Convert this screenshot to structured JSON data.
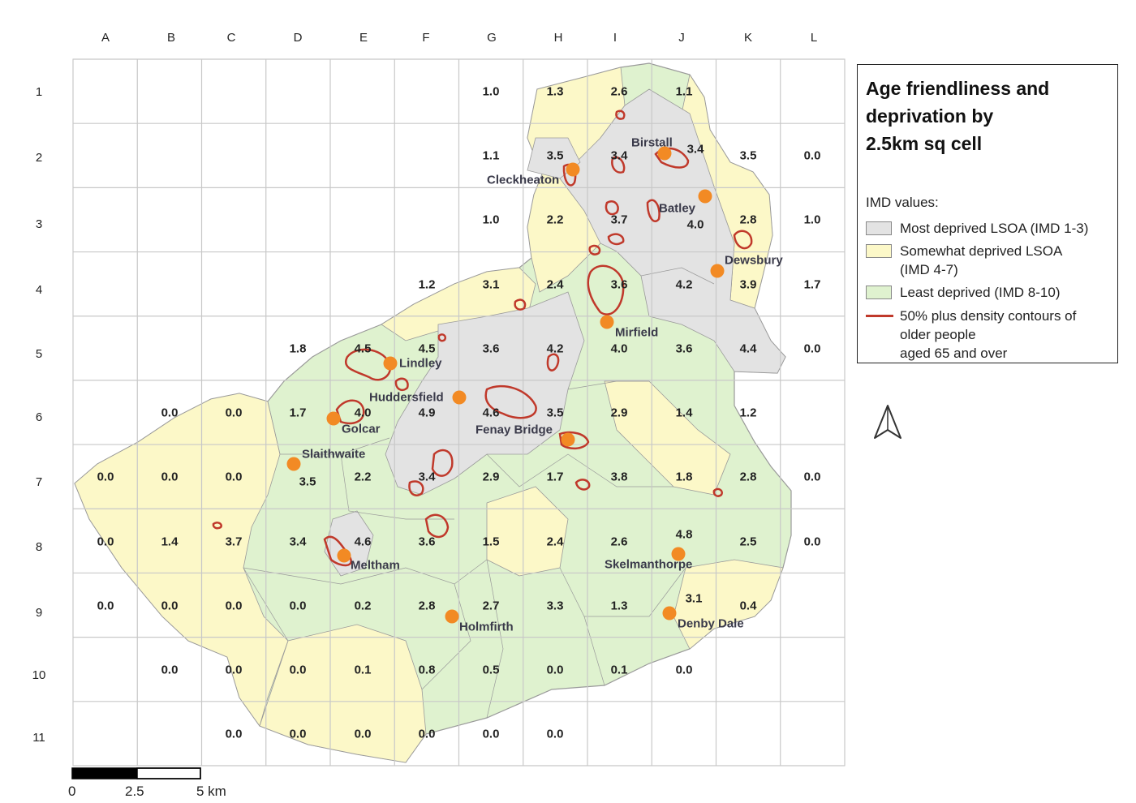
{
  "legend": {
    "title_lines": [
      "Age friendliness and",
      "deprivation by",
      "2.5km sq cell"
    ],
    "subtitle": "IMD values:",
    "items": [
      {
        "label": "Most deprived LSOA (IMD 1-3)",
        "color": "#e3e3e3"
      },
      {
        "label_lines": [
          "Somewhat deprived LSOA",
          "(IMD 4-7)"
        ],
        "color": "#fcf8c8"
      },
      {
        "label": "Least deprived (IMD 8-10)",
        "color": "#dff2cf"
      },
      {
        "label_lines": [
          "50% plus density contours of",
          "older people",
          "aged 65 and over"
        ],
        "color": "#c0392b"
      }
    ]
  },
  "grid": {
    "columns": [
      "A",
      "B",
      "C",
      "D",
      "E",
      "F",
      "G",
      "H",
      "I",
      "J",
      "K",
      "L"
    ],
    "rows": [
      "1",
      "2",
      "3",
      "4",
      "5",
      "6",
      "7",
      "8",
      "9",
      "10",
      "11"
    ]
  },
  "cell_values": [
    {
      "cell": "G1",
      "v": "1.0"
    },
    {
      "cell": "H1",
      "v": "1.3"
    },
    {
      "cell": "I1",
      "v": "2.6"
    },
    {
      "cell": "J1",
      "v": "1.1"
    },
    {
      "cell": "G2",
      "v": "1.1"
    },
    {
      "cell": "H2",
      "v": "3.5"
    },
    {
      "cell": "I2",
      "v": "3.4"
    },
    {
      "cell": "J2",
      "v": "3.4"
    },
    {
      "cell": "K2",
      "v": "3.5"
    },
    {
      "cell": "L2",
      "v": "0.0"
    },
    {
      "cell": "G3",
      "v": "1.0"
    },
    {
      "cell": "H3",
      "v": "2.2"
    },
    {
      "cell": "I3",
      "v": "3.7"
    },
    {
      "cell": "J3",
      "v": "4.0"
    },
    {
      "cell": "K3",
      "v": "2.8"
    },
    {
      "cell": "L3",
      "v": "1.0"
    },
    {
      "cell": "F4",
      "v": "1.2"
    },
    {
      "cell": "G4",
      "v": "3.1"
    },
    {
      "cell": "H4",
      "v": "2.4"
    },
    {
      "cell": "I4",
      "v": "3.6"
    },
    {
      "cell": "J4",
      "v": "4.2"
    },
    {
      "cell": "K4",
      "v": "3.9"
    },
    {
      "cell": "L4",
      "v": "1.7"
    },
    {
      "cell": "D5",
      "v": "1.8"
    },
    {
      "cell": "E5",
      "v": "4.5"
    },
    {
      "cell": "F5",
      "v": "4.5"
    },
    {
      "cell": "G5",
      "v": "3.6"
    },
    {
      "cell": "H5",
      "v": "4.2"
    },
    {
      "cell": "I5",
      "v": "4.0"
    },
    {
      "cell": "J5",
      "v": "3.6"
    },
    {
      "cell": "K5",
      "v": "4.4"
    },
    {
      "cell": "L5",
      "v": "0.0"
    },
    {
      "cell": "B6",
      "v": "0.0"
    },
    {
      "cell": "C6",
      "v": "0.0"
    },
    {
      "cell": "D6",
      "v": "1.7"
    },
    {
      "cell": "E6",
      "v": "4.0"
    },
    {
      "cell": "F6",
      "v": "4.9"
    },
    {
      "cell": "G6",
      "v": "4.6"
    },
    {
      "cell": "H6",
      "v": "3.5"
    },
    {
      "cell": "I6",
      "v": "2.9"
    },
    {
      "cell": "J6",
      "v": "1.4"
    },
    {
      "cell": "K6",
      "v": "1.2"
    },
    {
      "cell": "A7",
      "v": "0.0"
    },
    {
      "cell": "B7",
      "v": "0.0"
    },
    {
      "cell": "C7",
      "v": "0.0"
    },
    {
      "cell": "D7",
      "v": "3.5"
    },
    {
      "cell": "E7",
      "v": "2.2"
    },
    {
      "cell": "F7",
      "v": "3.4"
    },
    {
      "cell": "G7",
      "v": "2.9"
    },
    {
      "cell": "H7",
      "v": "1.7"
    },
    {
      "cell": "I7",
      "v": "3.8"
    },
    {
      "cell": "J7",
      "v": "1.8"
    },
    {
      "cell": "K7",
      "v": "2.8"
    },
    {
      "cell": "L7",
      "v": "0.0"
    },
    {
      "cell": "A8",
      "v": "0.0"
    },
    {
      "cell": "B8",
      "v": "1.4"
    },
    {
      "cell": "C8",
      "v": "3.7"
    },
    {
      "cell": "D8",
      "v": "3.4"
    },
    {
      "cell": "E8",
      "v": "4.6"
    },
    {
      "cell": "F8",
      "v": "3.6"
    },
    {
      "cell": "G8",
      "v": "1.5"
    },
    {
      "cell": "H8",
      "v": "2.4"
    },
    {
      "cell": "I8",
      "v": "2.6"
    },
    {
      "cell": "J8",
      "v": "4.8"
    },
    {
      "cell": "K8",
      "v": "2.5"
    },
    {
      "cell": "L8",
      "v": "0.0"
    },
    {
      "cell": "A9",
      "v": "0.0"
    },
    {
      "cell": "B9",
      "v": "0.0"
    },
    {
      "cell": "C9",
      "v": "0.0"
    },
    {
      "cell": "D9",
      "v": "0.0"
    },
    {
      "cell": "E9",
      "v": "0.2"
    },
    {
      "cell": "F9",
      "v": "2.8"
    },
    {
      "cell": "G9",
      "v": "2.7"
    },
    {
      "cell": "H9",
      "v": "3.3"
    },
    {
      "cell": "I9",
      "v": "1.3"
    },
    {
      "cell": "J9",
      "v": "3.1"
    },
    {
      "cell": "K9",
      "v": "0.4"
    },
    {
      "cell": "B10",
      "v": "0.0"
    },
    {
      "cell": "C10",
      "v": "0.0"
    },
    {
      "cell": "D10",
      "v": "0.0"
    },
    {
      "cell": "E10",
      "v": "0.1"
    },
    {
      "cell": "F10",
      "v": "0.8"
    },
    {
      "cell": "G10",
      "v": "0.5"
    },
    {
      "cell": "H10",
      "v": "0.0"
    },
    {
      "cell": "I10",
      "v": "0.1"
    },
    {
      "cell": "J10",
      "v": "0.0"
    },
    {
      "cell": "C11",
      "v": "0.0"
    },
    {
      "cell": "D11",
      "v": "0.0"
    },
    {
      "cell": "E11",
      "v": "0.0"
    },
    {
      "cell": "F11",
      "v": "0.0"
    },
    {
      "cell": "G11",
      "v": "0.0"
    },
    {
      "cell": "H11",
      "v": "0.0"
    }
  ],
  "towns": [
    "Birstall",
    "Cleckheaton",
    "Batley",
    "Dewsbury",
    "Mirfield",
    "Lindley",
    "Huddersfield",
    "Golcar",
    "Fenay Bridge",
    "Slaithwaite",
    "Meltham",
    "Skelmanthorpe",
    "Holmfirth",
    "Denby Dale"
  ],
  "scale": {
    "labels": [
      "0",
      "2.5",
      "5 km"
    ]
  },
  "colors": {
    "most_deprived": "#e3e3e3",
    "somewhat_deprived": "#fcf8c8",
    "least_deprived": "#dff2cf",
    "contour": "#c0392b",
    "town_marker": "#f28a24",
    "grid": "#c8c8c8"
  }
}
